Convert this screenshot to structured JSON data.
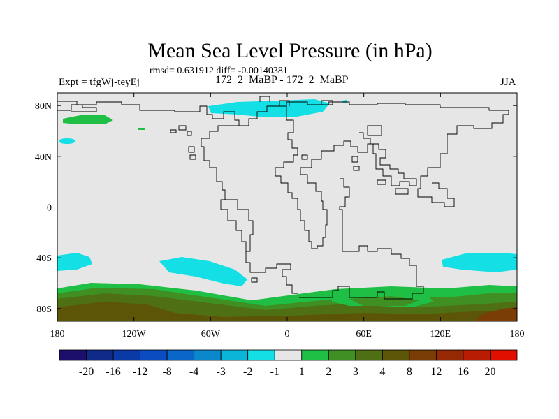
{
  "chart_data": {
    "type": "contour-map",
    "title": "Mean Sea Level Pressure (in hPa)",
    "stats_text": "rmsd= 0.631912 diff= -0.00140381",
    "left_label": "Expt = tfgWj-teyEj",
    "center_label": "172_2_MaBP - 172_2_MaBP",
    "right_label": "JJA",
    "lon_range": [
      -180,
      180
    ],
    "lat_range": [
      -90,
      90
    ],
    "x_ticks": [
      {
        "value": -180,
        "label": "180"
      },
      {
        "value": -120,
        "label": "120W"
      },
      {
        "value": -60,
        "label": "60W"
      },
      {
        "value": 0,
        "label": "0"
      },
      {
        "value": 60,
        "label": "60E"
      },
      {
        "value": 120,
        "label": "120E"
      },
      {
        "value": 180,
        "label": "180"
      }
    ],
    "y_ticks": [
      {
        "value": 80,
        "label": "80N"
      },
      {
        "value": 40,
        "label": "40N"
      },
      {
        "value": 0,
        "label": "0"
      },
      {
        "value": -40,
        "label": "40S"
      },
      {
        "value": -80,
        "label": "80S"
      }
    ],
    "levels": [
      "-20",
      "-16",
      "-12",
      "-8",
      "-4",
      "-3",
      "-2",
      "-1",
      "1",
      "2",
      "3",
      "4",
      "8",
      "12",
      "16",
      "20"
    ],
    "colors": [
      "#1b0f6b",
      "#102a8a",
      "#0a3aa8",
      "#0b4cc0",
      "#0a66c8",
      "#0b88cc",
      "#0ab5d8",
      "#14dfe4",
      "#e6e6e6",
      "#1fbe44",
      "#3f8f23",
      "#4f6f14",
      "#5c5407",
      "#7a3d05",
      "#962803",
      "#b81d03",
      "#e00f00"
    ]
  }
}
